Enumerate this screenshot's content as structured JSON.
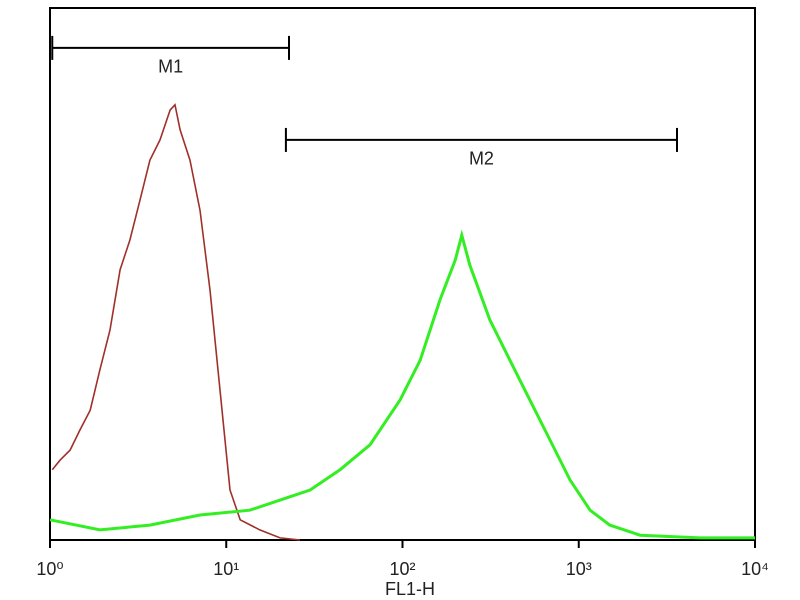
{
  "chart_data": {
    "type": "histogram-line",
    "x_label": "FL1-H",
    "xscale": "log",
    "xlim": [
      1,
      10000
    ],
    "ylim": [
      0,
      100
    ],
    "xticks": [
      {
        "value": 1,
        "label": "10⁰"
      },
      {
        "value": 10,
        "label": "10¹"
      },
      {
        "value": 100,
        "label": "10²"
      },
      {
        "value": 1000,
        "label": "10³"
      },
      {
        "value": 10000,
        "label": "10⁴"
      }
    ],
    "series": [
      {
        "color": "#a0302a",
        "x": [
          1.03,
          1.14,
          1.3,
          1.48,
          1.69,
          1.92,
          2.19,
          2.5,
          2.84,
          3.24,
          3.69,
          4.21,
          4.8,
          5.12,
          5.47,
          6.23,
          7.1,
          8.09,
          9.22,
          10.5,
          12,
          15.5,
          20.2,
          26.2
        ],
        "values": [
          13.2,
          15,
          16.9,
          20.7,
          24.4,
          32,
          39.5,
          50.8,
          56.4,
          63.9,
          71.4,
          75.2,
          80.8,
          81.8,
          77.1,
          71.4,
          62,
          47,
          28.2,
          9.4,
          3.8,
          1.9,
          0.4,
          0
        ]
      },
      {
        "color": "#33ee22",
        "x": [
          1,
          1.92,
          3.69,
          7.1,
          13.6,
          20.2,
          29.9,
          44.2,
          65.4,
          96.8,
          126,
          163,
          199,
          217,
          241,
          313,
          407,
          528,
          687,
          892,
          1160,
          1500,
          2230,
          4880,
          10000
        ],
        "values": [
          3.8,
          1.9,
          2.8,
          4.7,
          5.6,
          7.5,
          9.4,
          13.2,
          17.9,
          26.3,
          33.8,
          45.1,
          52.6,
          57.3,
          51.7,
          41.4,
          33.8,
          26.3,
          18.8,
          11.3,
          5.6,
          2.8,
          0.9,
          0.4,
          0.4
        ]
      }
    ],
    "markers": [
      {
        "label": "M1",
        "range": [
          1.03,
          22.7
        ],
        "level": 92.5
      },
      {
        "label": "M2",
        "range": [
          21.8,
          3610
        ],
        "level": 75.2
      }
    ]
  }
}
